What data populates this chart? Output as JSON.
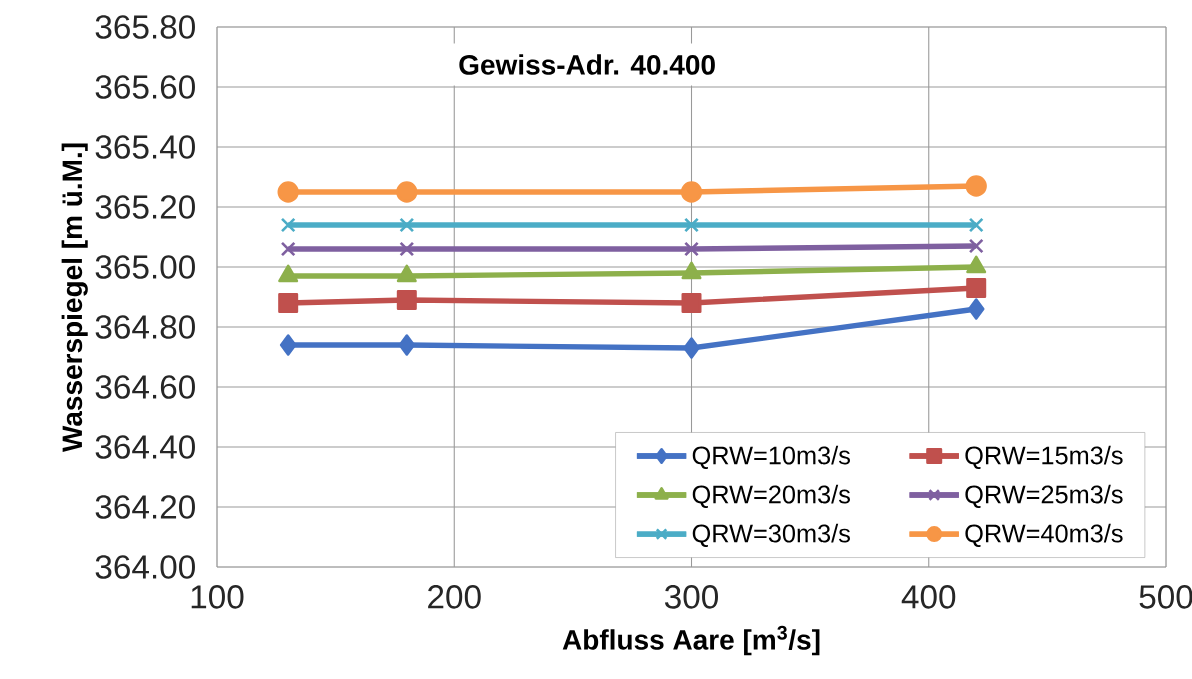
{
  "chart_data": {
    "type": "line",
    "title": "Gewiss-Adr. 40.400",
    "xlabel": "Abfluss Aare [m$^{3}$/s]",
    "ylabel": "Wasserspiegel [m ü.M.]",
    "x": [
      130,
      180,
      300,
      420
    ],
    "series": [
      {
        "name": "QRW=10m3/s",
        "color": "#4472c4",
        "marker": "diamond",
        "values": [
          364.74,
          364.74,
          364.73,
          364.86
        ]
      },
      {
        "name": "QRW=15m3/s",
        "color": "#c0504d",
        "marker": "square",
        "values": [
          364.88,
          364.89,
          364.88,
          364.93
        ]
      },
      {
        "name": "QRW=20m3/s",
        "color": "#8db04b",
        "marker": "triangle",
        "values": [
          364.97,
          364.97,
          364.98,
          365.0
        ]
      },
      {
        "name": "QRW=25m3/s",
        "color": "#7f60a0",
        "marker": "cross",
        "values": [
          365.06,
          365.06,
          365.06,
          365.07
        ]
      },
      {
        "name": "QRW=30m3/s",
        "color": "#4bacc6",
        "marker": "cross",
        "values": [
          365.14,
          365.14,
          365.14,
          365.14
        ]
      },
      {
        "name": "QRW=40m3/s",
        "color": "#f79646",
        "marker": "circle",
        "values": [
          365.25,
          365.25,
          365.25,
          365.27
        ]
      }
    ],
    "xlim": [
      100,
      500
    ],
    "ylim": [
      364.0,
      365.8
    ],
    "xticks": [
      100,
      200,
      300,
      400,
      500
    ],
    "yticks": [
      {
        "value": 364.0,
        "label": "364.00"
      },
      {
        "value": 364.2,
        "label": "364.20"
      },
      {
        "value": 364.4,
        "label": "364.40"
      },
      {
        "value": 364.6,
        "label": "364.60"
      },
      {
        "value": 364.8,
        "label": "364.80"
      },
      {
        "value": 365.0,
        "label": "365.00"
      },
      {
        "value": 365.2,
        "label": "365.20"
      },
      {
        "value": 365.4,
        "label": "365.40"
      },
      {
        "value": 365.6,
        "label": "365.60"
      },
      {
        "value": 365.8,
        "label": "365.80"
      }
    ],
    "grid": true,
    "legend": "bottom right",
    "line_style": "solid"
  }
}
